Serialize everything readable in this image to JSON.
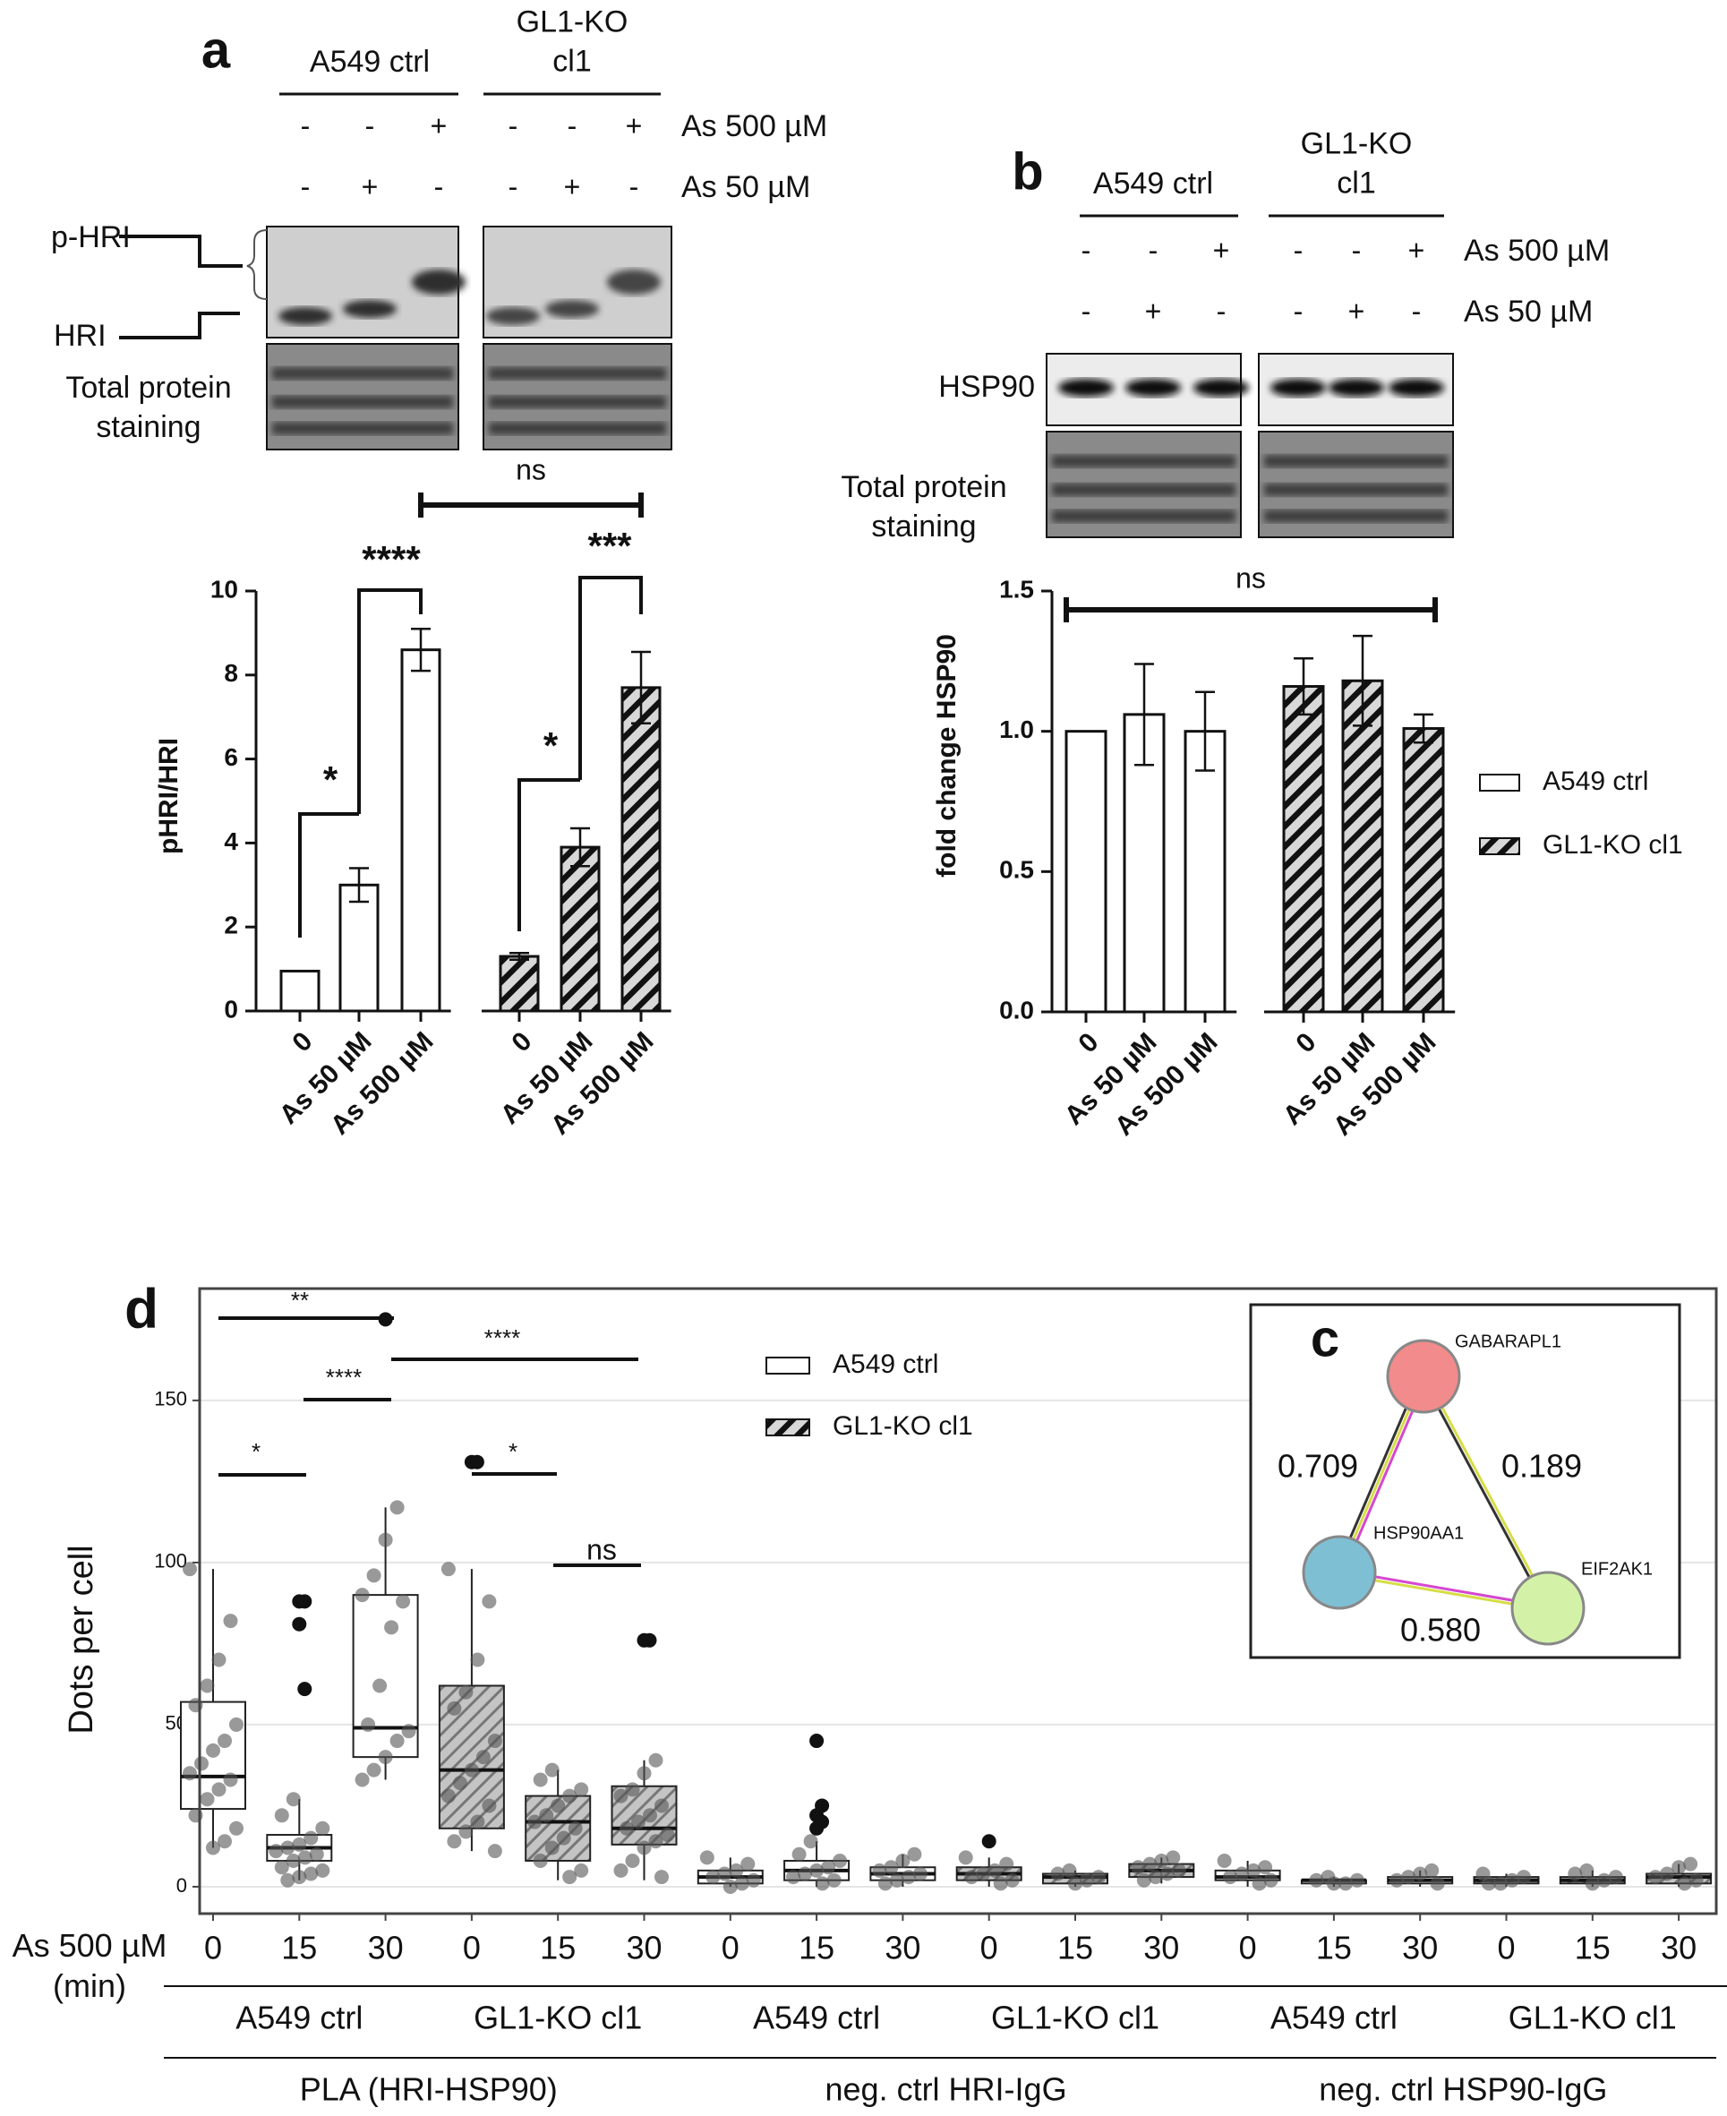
{
  "chart_data": [
    {
      "type": "bar",
      "panel": "a",
      "ylabel": "pHRI/HRI",
      "ylim": [
        0,
        10
      ],
      "yticks": [
        0,
        2,
        4,
        6,
        8,
        10
      ],
      "blot": {
        "treatments": [
          {
            "name": "As 500 µM",
            "signs": [
              "-",
              "-",
              "+",
              "-",
              "-",
              "+"
            ]
          },
          {
            "name": "As 50 µM",
            "signs": [
              "-",
              "+",
              "-",
              "-",
              "+",
              "-"
            ]
          }
        ],
        "bands": [
          "p-HRI",
          "HRI"
        ],
        "loading": "Total protein staining"
      },
      "groups": [
        {
          "name": "A549 ctrl",
          "fill": "white",
          "categories": [
            "0",
            "As 50 µM",
            "As 500 µM"
          ],
          "values": [
            0.95,
            3.0,
            8.6
          ],
          "errors": [
            null,
            0.4,
            0.5
          ]
        },
        {
          "name": "GL1-KO cl1",
          "fill": "hatched",
          "categories": [
            "0",
            "As 50 µM",
            "As 500 µM"
          ],
          "values": [
            1.3,
            3.9,
            7.7
          ],
          "errors": [
            0.08,
            0.45,
            0.85
          ]
        }
      ],
      "annotations": [
        "*",
        "****",
        "*",
        "***",
        "ns"
      ]
    },
    {
      "type": "bar",
      "panel": "b",
      "ylabel": "fold change HSP90",
      "ylim": [
        0,
        1.5
      ],
      "yticks": [
        {
          "value": 0,
          "label": "0.0"
        },
        0.5,
        {
          "value": 1,
          "label": "1.0"
        },
        1.5
      ],
      "blot": {
        "treatments": [
          {
            "name": "As 500 µM",
            "signs": [
              "-",
              "-",
              "+",
              "-",
              "-",
              "+"
            ]
          },
          {
            "name": "As 50 µM",
            "signs": [
              "-",
              "+",
              "-",
              "-",
              "+",
              "-"
            ]
          }
        ],
        "bands": [
          "HSP90"
        ],
        "loading": "Total protein staining"
      },
      "groups": [
        {
          "name": "A549 ctrl",
          "fill": "white",
          "categories": [
            "0",
            "As 50 µM",
            "As 500 µM"
          ],
          "values": [
            1.0,
            1.06,
            1.0
          ],
          "errors": [
            null,
            0.18,
            0.14
          ]
        },
        {
          "name": "GL1-KO cl1",
          "fill": "hatched",
          "categories": [
            "0",
            "As 50 µM",
            "As 500 µM"
          ],
          "values": [
            1.16,
            1.18,
            1.01
          ],
          "errors": [
            0.1,
            0.16,
            0.05
          ]
        }
      ],
      "legend": true,
      "annotations": [
        "ns"
      ]
    },
    {
      "type": "box",
      "panel": "d",
      "ylabel": "Dots per cell",
      "x_title": "As 500 µM (min)",
      "ylim": [
        -8.3,
        184.5
      ],
      "yticks": [
        0,
        50,
        100,
        150
      ],
      "grid": true,
      "legend": [
        {
          "name": "A549 ctrl",
          "fill": "white"
        },
        {
          "name": "GL1-KO cl1",
          "fill": "hatched"
        }
      ],
      "assays": [
        {
          "name": "PLA (HRI-HSP90)",
          "groups": [
            {
              "name": "A549 ctrl",
              "fill": "white",
              "categories": [
                "0",
                "15",
                "30"
              ],
              "boxes": [
                {
                  "q1": 24,
                  "median": 34,
                  "q3": 57,
                  "low": 12,
                  "high": 98,
                  "points": [
                    98,
                    82,
                    70,
                    62,
                    56,
                    50,
                    45,
                    42,
                    38,
                    35,
                    33,
                    30,
                    27,
                    22,
                    18,
                    14,
                    12
                  ],
                  "outliers": []
                },
                {
                  "q1": 8,
                  "median": 12,
                  "q3": 16,
                  "low": 2,
                  "high": 27,
                  "points": [
                    27,
                    22,
                    18,
                    15,
                    13,
                    12,
                    11,
                    10,
                    9,
                    8,
                    6,
                    5,
                    4,
                    3,
                    2
                  ],
                  "outliers": [
                    88,
                    88,
                    81,
                    61
                  ]
                },
                {
                  "q1": 40,
                  "median": 49,
                  "q3": 90,
                  "low": 33,
                  "high": 117,
                  "points": [
                    117,
                    107,
                    96,
                    90,
                    88,
                    80,
                    62,
                    50,
                    48,
                    45,
                    40,
                    36,
                    33
                  ],
                  "outliers": [
                    175
                  ]
                }
              ]
            },
            {
              "name": "GL1-KO cl1",
              "fill": "hatched",
              "categories": [
                "0",
                "15",
                "30"
              ],
              "boxes": [
                {
                  "q1": 18,
                  "median": 36,
                  "q3": 62,
                  "low": 11,
                  "high": 98,
                  "points": [
                    98,
                    88,
                    70,
                    60,
                    55,
                    45,
                    40,
                    36,
                    32,
                    28,
                    25,
                    20,
                    17,
                    14,
                    11
                  ],
                  "outliers": [
                    131,
                    131
                  ]
                },
                {
                  "q1": 8,
                  "median": 20,
                  "q3": 28,
                  "low": 2,
                  "high": 36,
                  "points": [
                    36,
                    33,
                    30,
                    28,
                    25,
                    22,
                    20,
                    18,
                    15,
                    12,
                    8,
                    5,
                    3
                  ],
                  "outliers": []
                },
                {
                  "q1": 13,
                  "median": 18,
                  "q3": 31,
                  "low": 2,
                  "high": 39,
                  "points": [
                    39,
                    35,
                    30,
                    28,
                    25,
                    22,
                    20,
                    18,
                    16,
                    14,
                    12,
                    8,
                    5,
                    3
                  ],
                  "outliers": [
                    76,
                    76
                  ]
                }
              ]
            }
          ]
        },
        {
          "name": "neg. ctrl HRI-IgG",
          "groups": [
            {
              "name": "A549 ctrl",
              "fill": "white",
              "categories": [
                "0",
                "15",
                "30"
              ],
              "boxes": [
                {
                  "q1": 1,
                  "median": 3,
                  "q3": 5,
                  "low": 0,
                  "high": 9,
                  "points": [
                    9,
                    7,
                    5,
                    4,
                    3,
                    2,
                    1,
                    0
                  ],
                  "outliers": []
                },
                {
                  "q1": 2,
                  "median": 5,
                  "q3": 8,
                  "low": 0,
                  "high": 14,
                  "points": [
                    14,
                    10,
                    8,
                    6,
                    5,
                    4,
                    3,
                    2,
                    1
                  ],
                  "outliers": [
                    45,
                    25,
                    22,
                    20,
                    18
                  ]
                },
                {
                  "q1": 2,
                  "median": 4,
                  "q3": 6,
                  "low": 0,
                  "high": 10,
                  "points": [
                    10,
                    8,
                    6,
                    5,
                    4,
                    3,
                    2,
                    1
                  ],
                  "outliers": []
                }
              ]
            },
            {
              "name": "GL1-KO cl1",
              "fill": "hatched",
              "categories": [
                "0",
                "15",
                "30"
              ],
              "boxes": [
                {
                  "q1": 2,
                  "median": 4,
                  "q3": 6,
                  "low": 0,
                  "high": 9,
                  "points": [
                    9,
                    7,
                    5,
                    4,
                    3,
                    2,
                    1
                  ],
                  "outliers": [
                    14
                  ]
                },
                {
                  "q1": 1,
                  "median": 3,
                  "q3": 4,
                  "low": 0,
                  "high": 5,
                  "points": [
                    5,
                    4,
                    3,
                    2,
                    1
                  ],
                  "outliers": []
                },
                {
                  "q1": 3,
                  "median": 5,
                  "q3": 7,
                  "low": 1,
                  "high": 9,
                  "points": [
                    9,
                    8,
                    7,
                    6,
                    5,
                    4,
                    3,
                    2
                  ],
                  "outliers": []
                }
              ]
            }
          ]
        },
        {
          "name": "neg. ctrl HSP90-IgG",
          "groups": [
            {
              "name": "A549 ctrl",
              "fill": "white",
              "categories": [
                "0",
                "15",
                "30"
              ],
              "boxes": [
                {
                  "q1": 2,
                  "median": 3,
                  "q3": 5,
                  "low": 0,
                  "high": 8,
                  "points": [
                    8,
                    6,
                    5,
                    4,
                    3,
                    2,
                    1
                  ],
                  "outliers": []
                },
                {
                  "q1": 1,
                  "median": 2,
                  "q3": 2,
                  "low": 0,
                  "high": 3,
                  "points": [
                    3,
                    2,
                    2,
                    1,
                    1
                  ],
                  "outliers": []
                },
                {
                  "q1": 1,
                  "median": 2,
                  "q3": 3,
                  "low": 0,
                  "high": 5,
                  "points": [
                    5,
                    4,
                    3,
                    2,
                    1
                  ],
                  "outliers": []
                }
              ]
            },
            {
              "name": "GL1-KO cl1",
              "fill": "hatched",
              "categories": [
                "0",
                "15",
                "30"
              ],
              "boxes": [
                {
                  "q1": 1,
                  "median": 2,
                  "q3": 3,
                  "low": 0,
                  "high": 4,
                  "points": [
                    4,
                    3,
                    2,
                    1,
                    1
                  ],
                  "outliers": []
                },
                {
                  "q1": 1,
                  "median": 2,
                  "q3": 3,
                  "low": 0,
                  "high": 5,
                  "points": [
                    5,
                    4,
                    3,
                    2,
                    1
                  ],
                  "outliers": []
                },
                {
                  "q1": 1,
                  "median": 3,
                  "q3": 4,
                  "low": 0,
                  "high": 7,
                  "points": [
                    7,
                    6,
                    4,
                    3,
                    2,
                    1
                  ],
                  "outliers": []
                }
              ]
            }
          ]
        }
      ],
      "annotations": [
        "**",
        "****",
        "****",
        "*",
        "*",
        "ns"
      ]
    }
  ],
  "network": {
    "panel": "c",
    "nodes": [
      {
        "label": "GABARAPL1",
        "color": "#f28b8b"
      },
      {
        "label": "HSP90AA1",
        "color": "#7fbfd4"
      },
      {
        "label": "EIF2AK1",
        "color": "#d3f2a8"
      }
    ],
    "edges": [
      {
        "from": 0,
        "to": 1,
        "score": "0.709"
      },
      {
        "from": 0,
        "to": 2,
        "score": "0.189"
      },
      {
        "from": 1,
        "to": 2,
        "score": "0.580"
      }
    ]
  }
}
